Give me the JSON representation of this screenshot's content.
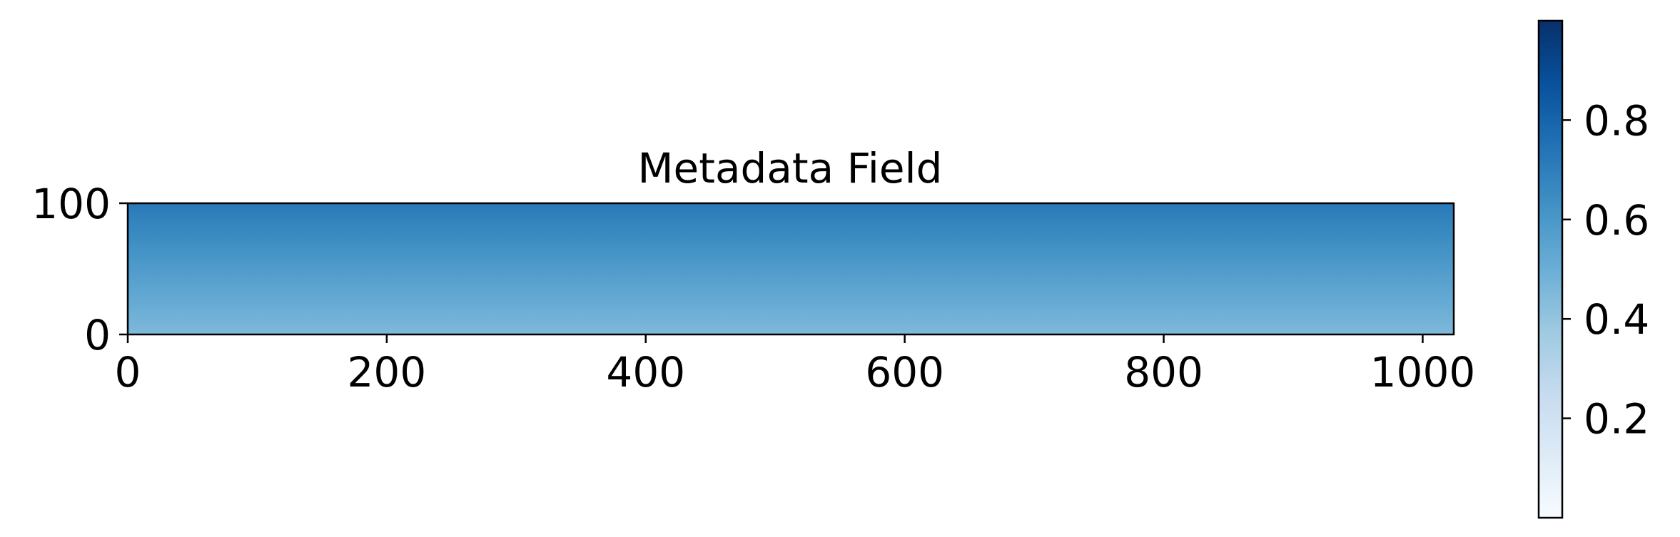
{
  "chart_data": {
    "type": "heatmap",
    "title": "Metadata Field",
    "xlabel": "",
    "ylabel": "",
    "x_range": [
      0,
      1024
    ],
    "y_range": [
      0,
      100
    ],
    "x_ticks": [
      {
        "value": 0,
        "label": "0"
      },
      {
        "value": 200,
        "label": "200"
      },
      {
        "value": 400,
        "label": "400"
      },
      {
        "value": 600,
        "label": "600"
      },
      {
        "value": 800,
        "label": "800"
      },
      {
        "value": 1000,
        "label": "1000"
      }
    ],
    "y_ticks": [
      {
        "value": 0,
        "label": "0"
      },
      {
        "value": 100,
        "label": "100"
      }
    ],
    "value_profile": {
      "description_axis": "y",
      "y": [
        0,
        100
      ],
      "values": [
        0.45,
        0.72
      ]
    },
    "colormap": "Blues",
    "colormap_stops": [
      "#f7fbff",
      "#deebf7",
      "#c6dbef",
      "#9ecae1",
      "#6baed6",
      "#4292c6",
      "#2171b5",
      "#08519c",
      "#08306b"
    ],
    "colorbar": {
      "range": [
        0.0,
        1.0
      ],
      "ticks": [
        {
          "value": 0.2,
          "label": "0.2"
        },
        {
          "value": 0.4,
          "label": "0.4"
        },
        {
          "value": 0.6,
          "label": "0.6"
        },
        {
          "value": 0.8,
          "label": "0.8"
        }
      ]
    }
  }
}
